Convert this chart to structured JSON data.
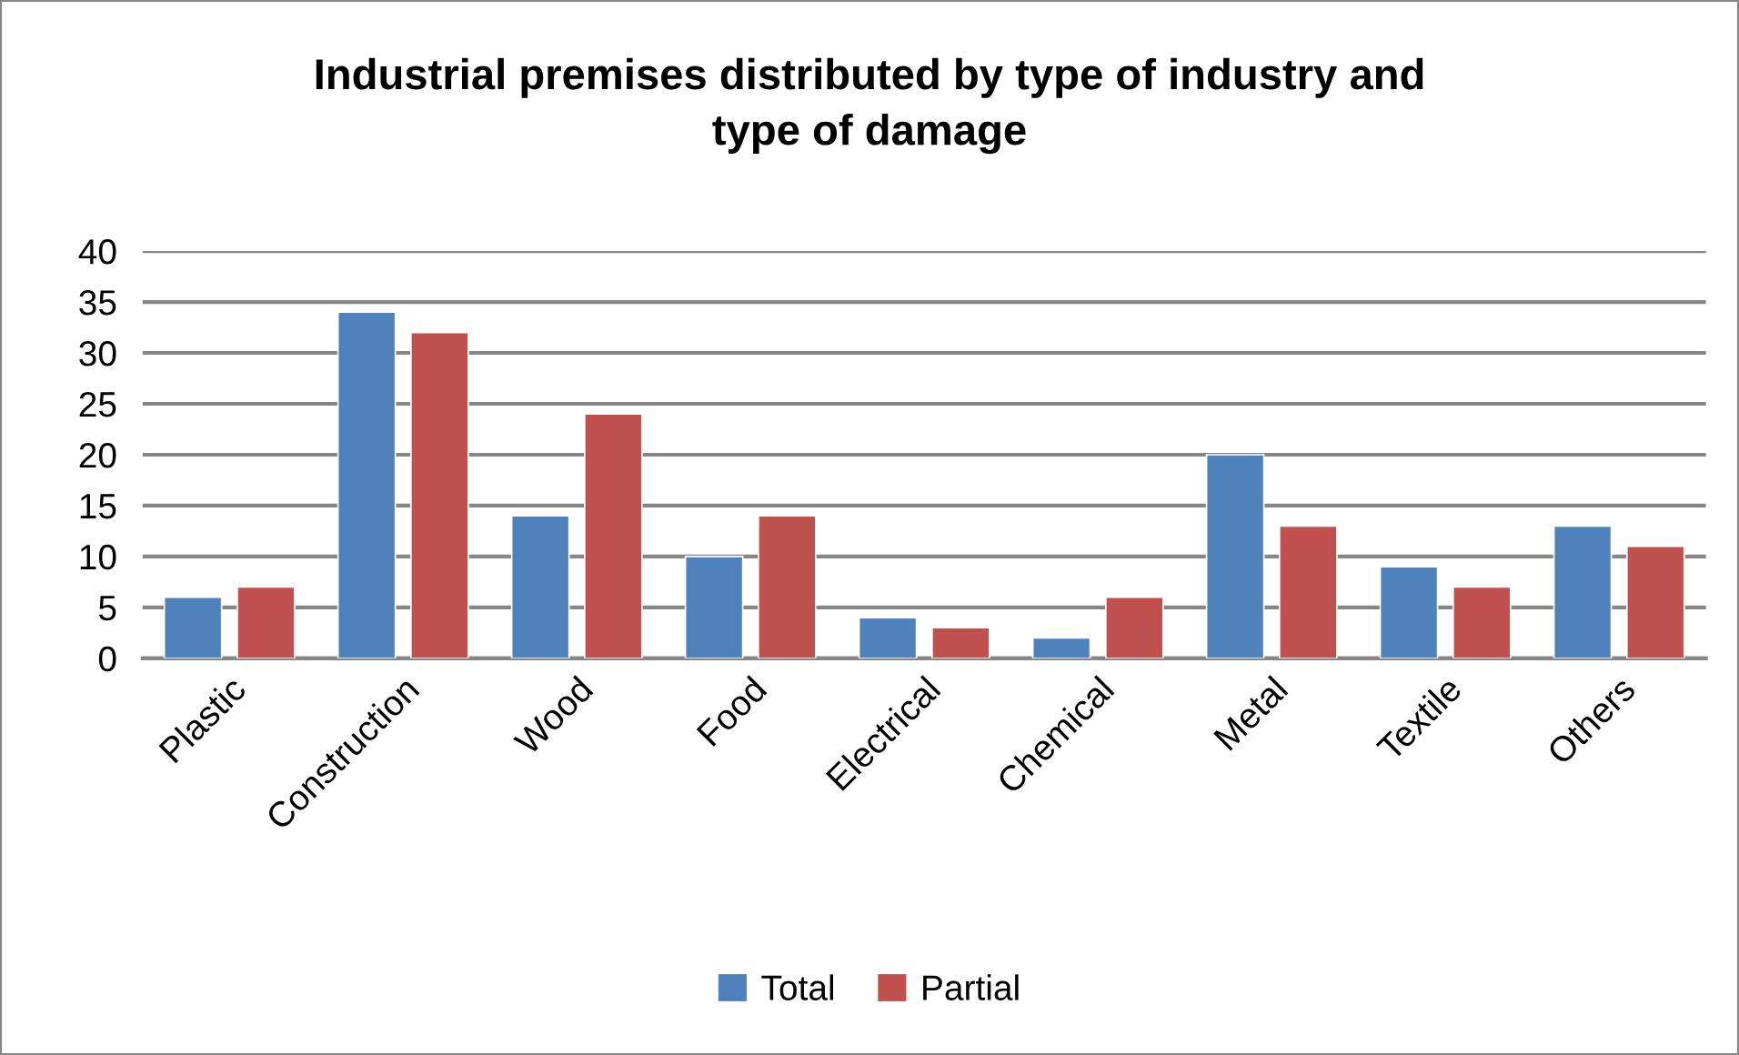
{
  "chart_data": {
    "type": "bar",
    "title": "Industrial premises distributed by type of industry and\ntype of damage",
    "categories": [
      "Plastic",
      "Construction",
      "Wood",
      "Food",
      "Electrical",
      "Chemical",
      "Metal",
      "Textile",
      "Others"
    ],
    "series": [
      {
        "name": "Total",
        "color": "#4f81bd",
        "values": [
          6,
          34,
          14,
          10,
          4,
          2,
          20,
          9,
          13
        ]
      },
      {
        "name": "Partial",
        "color": "#c0504d",
        "values": [
          7,
          32,
          24,
          14,
          3,
          6,
          13,
          7,
          11
        ]
      }
    ],
    "ylim": [
      0,
      40
    ],
    "yticks": [
      0,
      5,
      10,
      15,
      20,
      25,
      30,
      35,
      40
    ],
    "grid": "y",
    "legend": "bottom"
  }
}
